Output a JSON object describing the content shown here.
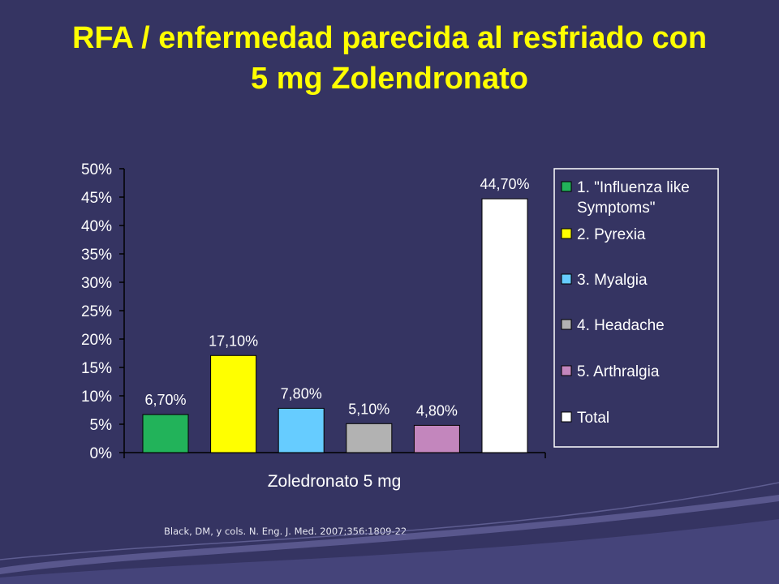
{
  "title": {
    "line1": "RFA / enfermedad parecida al resfriado con",
    "line2": "5 mg Zolendronato"
  },
  "citation": "Black, DM, y cols.  N. Eng. J. Med. 2007;356:1809-22",
  "chart_data": {
    "type": "bar",
    "title": "RFA / enfermedad parecida al resfriado con 5 mg Zolendronato",
    "xlabel": "Zoledronato 5 mg",
    "ylabel": "",
    "ylim": [
      0,
      50
    ],
    "grid": false,
    "legend_position": "right",
    "y_ticks": [
      "0%",
      "5%",
      "10%",
      "15%",
      "20%",
      "25%",
      "30%",
      "35%",
      "40%",
      "45%",
      "50%"
    ],
    "series": [
      {
        "name": "1. \"Influenza like Symptoms\"",
        "value": 6.7,
        "label": "6,70%",
        "color": "#22b35a"
      },
      {
        "name": "2. Pyrexia",
        "value": 17.1,
        "label": "17,10%",
        "color": "#ffff00"
      },
      {
        "name": "3. Myalgia",
        "value": 7.8,
        "label": "7,80%",
        "color": "#66ccff"
      },
      {
        "name": "4. Headache",
        "value": 5.1,
        "label": "5,10%",
        "color": "#b2b2b2"
      },
      {
        "name": "5. Arthralgia",
        "value": 4.8,
        "label": "4,80%",
        "color": "#c386bd"
      },
      {
        "name": "Total",
        "value": 44.7,
        "label": "44,70%",
        "color": "#ffffff"
      }
    ]
  }
}
